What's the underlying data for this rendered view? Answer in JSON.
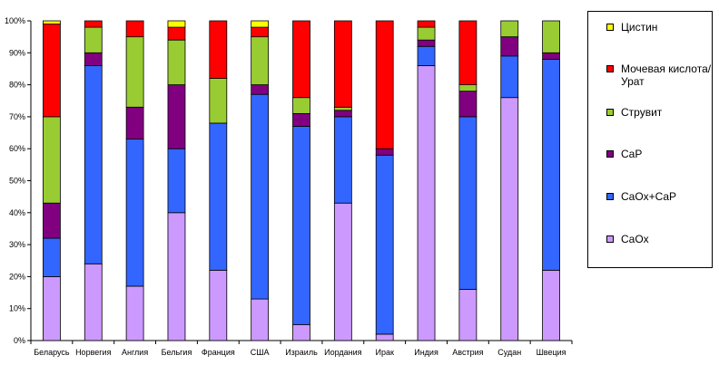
{
  "chart_data": {
    "type": "bar",
    "stacked": true,
    "percent": true,
    "categories": [
      "Беларусь",
      "Норвегия",
      "Англия",
      "Бельгия",
      "Франция",
      "США",
      "Израиль",
      "Иордания",
      "Ирак",
      "Индия",
      "Австрия",
      "Судан",
      "Швеция"
    ],
    "ylim": [
      0,
      100
    ],
    "yticks": [
      "0%",
      "10%",
      "20%",
      "30%",
      "40%",
      "50%",
      "60%",
      "70%",
      "80%",
      "90%",
      "100%"
    ],
    "grid": false,
    "legend_position": "right",
    "series": [
      {
        "name": "CaOx",
        "color": "#cc99ff",
        "values": [
          20,
          24,
          17,
          40,
          22,
          13,
          5,
          43,
          2,
          86,
          16,
          76,
          22
        ]
      },
      {
        "name": "CaOx+CaP",
        "color": "#3366ff",
        "values": [
          12,
          62,
          46,
          20,
          46,
          64,
          62,
          27,
          56,
          6,
          54,
          13,
          66
        ]
      },
      {
        "name": "CaP",
        "color": "#800080",
        "values": [
          11,
          4,
          10,
          20,
          0,
          3,
          4,
          2,
          2,
          2,
          8,
          6,
          2
        ]
      },
      {
        "name": "Струвит",
        "color": "#99cc33",
        "values": [
          27,
          8,
          22,
          14,
          14,
          15,
          5,
          1,
          0,
          4,
          2,
          5,
          10
        ]
      },
      {
        "name": "Мочевая кислота/Урат",
        "color": "#ff0000",
        "values": [
          29,
          2,
          5,
          4,
          18,
          3,
          24,
          27,
          40,
          2,
          20,
          0,
          0
        ]
      },
      {
        "name": "Цистин",
        "color": "#ffff00",
        "values": [
          1,
          0,
          0,
          2,
          0,
          2,
          0,
          0,
          0,
          0,
          0,
          0,
          0
        ]
      }
    ],
    "legend_order": [
      "Цистин",
      "Мочевая кислота/Урат",
      "Струвит",
      "CaP",
      "CaOx+CaP",
      "CaOx"
    ]
  }
}
